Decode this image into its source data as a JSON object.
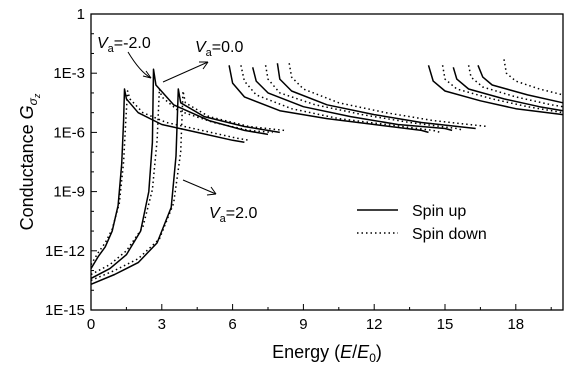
{
  "chart_data": {
    "type": "line",
    "xlabel": "Energy  (E/E0)",
    "ylabel": "Conductance  Gσz",
    "xlim": [
      0,
      20
    ],
    "ylim_log10": [
      -15,
      0
    ],
    "y_scale": "log",
    "x_ticks": [
      "0",
      "3",
      "6",
      "9",
      "12",
      "15",
      "18"
    ],
    "x_tick_values": [
      0,
      3,
      6,
      9,
      12,
      15,
      18
    ],
    "y_ticks": [
      "1E-15",
      "1E-12",
      "1E-9",
      "1E-6",
      "1E-3",
      "1"
    ],
    "y_tick_values": [
      -15,
      -12,
      -9,
      -6,
      -3,
      0
    ],
    "legend": {
      "position": "lower-right",
      "entries": [
        "Spin up",
        "Spin down"
      ]
    },
    "annotations": [
      {
        "text": "Va=-2.0",
        "points_to_x": 1.4
      },
      {
        "text": "Va=0.0",
        "points_to_x": 2.7
      },
      {
        "text": "Va=2.0",
        "points_to_x": 3.7
      }
    ],
    "series": [
      {
        "name": "Spin up",
        "style": "solid",
        "curves": [
          [
            [
              0.0,
              -12.9
            ],
            [
              0.3,
              -12.3
            ],
            [
              0.6,
              -11.8
            ],
            [
              0.9,
              -11.0
            ],
            [
              1.15,
              -9.7
            ],
            [
              1.3,
              -7.6
            ],
            [
              1.38,
              -5.4
            ],
            [
              1.42,
              -3.8
            ],
            [
              1.5,
              -4.3
            ],
            [
              2.0,
              -5.0
            ],
            [
              3.0,
              -5.6
            ],
            [
              4.5,
              -6.0
            ],
            [
              6.0,
              -6.4
            ],
            [
              6.5,
              -6.5
            ]
          ],
          [
            [
              0.0,
              -13.4
            ],
            [
              0.8,
              -12.9
            ],
            [
              1.5,
              -12.2
            ],
            [
              2.1,
              -11.0
            ],
            [
              2.45,
              -9.0
            ],
            [
              2.6,
              -6.5
            ],
            [
              2.65,
              -2.8
            ],
            [
              2.75,
              -3.6
            ],
            [
              3.5,
              -4.6
            ],
            [
              5.0,
              -5.4
            ],
            [
              6.5,
              -5.9
            ],
            [
              7.5,
              -6.1
            ]
          ],
          [
            [
              0.0,
              -13.7
            ],
            [
              1.0,
              -13.2
            ],
            [
              2.0,
              -12.6
            ],
            [
              2.8,
              -11.6
            ],
            [
              3.4,
              -9.8
            ],
            [
              3.6,
              -7.2
            ],
            [
              3.7,
              -3.8
            ],
            [
              3.8,
              -4.5
            ],
            [
              4.8,
              -5.2
            ],
            [
              6.5,
              -5.7
            ],
            [
              8.0,
              -6.0
            ]
          ],
          [
            [
              5.85,
              -2.6
            ],
            [
              6.0,
              -3.5
            ],
            [
              6.5,
              -4.2
            ],
            [
              8,
              -4.9
            ],
            [
              10,
              -5.3
            ],
            [
              12,
              -5.6
            ],
            [
              14,
              -5.9
            ],
            [
              14.3,
              -6.0
            ]
          ],
          [
            [
              6.85,
              -2.7
            ],
            [
              7.0,
              -3.4
            ],
            [
              7.5,
              -4.0
            ],
            [
              9,
              -4.7
            ],
            [
              11,
              -5.2
            ],
            [
              13,
              -5.6
            ],
            [
              15,
              -5.8
            ],
            [
              15.3,
              -5.9
            ]
          ],
          [
            [
              7.9,
              -2.5
            ],
            [
              8.0,
              -3.3
            ],
            [
              8.5,
              -3.9
            ],
            [
              10,
              -4.6
            ],
            [
              12,
              -5.1
            ],
            [
              14,
              -5.5
            ],
            [
              16.3,
              -5.8
            ]
          ],
          [
            [
              14.3,
              -2.6
            ],
            [
              14.5,
              -3.4
            ],
            [
              15,
              -3.9
            ],
            [
              16.5,
              -4.4
            ],
            [
              18,
              -4.8
            ],
            [
              20,
              -5.1
            ]
          ],
          [
            [
              15.35,
              -2.7
            ],
            [
              15.5,
              -3.3
            ],
            [
              16,
              -3.8
            ],
            [
              17.5,
              -4.3
            ],
            [
              19,
              -4.7
            ],
            [
              20,
              -4.9
            ]
          ],
          [
            [
              16.4,
              -2.6
            ],
            [
              16.6,
              -3.2
            ],
            [
              17,
              -3.6
            ],
            [
              18.5,
              -4.1
            ],
            [
              20,
              -4.5
            ]
          ]
        ]
      },
      {
        "name": "Spin down",
        "style": "dotted",
        "curves": [
          [
            [
              0.0,
              -12.7
            ],
            [
              0.3,
              -12.1
            ],
            [
              0.6,
              -11.6
            ],
            [
              0.9,
              -10.9
            ],
            [
              1.2,
              -9.6
            ],
            [
              1.38,
              -7.5
            ],
            [
              1.48,
              -5.3
            ],
            [
              1.55,
              -3.9
            ],
            [
              1.65,
              -4.3
            ],
            [
              2.2,
              -5.0
            ],
            [
              3.2,
              -5.5
            ],
            [
              4.7,
              -5.9
            ],
            [
              6.2,
              -6.3
            ],
            [
              6.7,
              -6.4
            ]
          ],
          [
            [
              0.0,
              -13.2
            ],
            [
              0.8,
              -12.7
            ],
            [
              1.5,
              -12.0
            ],
            [
              2.2,
              -10.8
            ],
            [
              2.6,
              -8.9
            ],
            [
              2.8,
              -6.4
            ],
            [
              2.9,
              -3.8
            ],
            [
              3.0,
              -4.2
            ],
            [
              3.7,
              -4.9
            ],
            [
              5.2,
              -5.5
            ],
            [
              6.7,
              -5.9
            ],
            [
              7.7,
              -6.0
            ]
          ],
          [
            [
              0.0,
              -13.5
            ],
            [
              1.0,
              -13.0
            ],
            [
              2.0,
              -12.4
            ],
            [
              2.9,
              -11.4
            ],
            [
              3.5,
              -9.6
            ],
            [
              3.8,
              -7.0
            ],
            [
              3.9,
              -3.9
            ],
            [
              4.0,
              -4.5
            ],
            [
              5.0,
              -5.2
            ],
            [
              6.7,
              -5.7
            ],
            [
              8.2,
              -5.9
            ]
          ],
          [
            [
              6.35,
              -2.6
            ],
            [
              6.5,
              -3.4
            ],
            [
              7.0,
              -4.1
            ],
            [
              8.5,
              -4.8
            ],
            [
              10.5,
              -5.3
            ],
            [
              12.5,
              -5.6
            ],
            [
              14.5,
              -5.9
            ],
            [
              14.8,
              -6.0
            ]
          ],
          [
            [
              7.4,
              -2.6
            ],
            [
              7.5,
              -3.3
            ],
            [
              8.0,
              -4.0
            ],
            [
              9.5,
              -4.6
            ],
            [
              11.5,
              -5.1
            ],
            [
              13.5,
              -5.5
            ],
            [
              15.5,
              -5.8
            ],
            [
              15.8,
              -5.9
            ]
          ],
          [
            [
              8.4,
              -2.5
            ],
            [
              8.5,
              -3.2
            ],
            [
              9.0,
              -3.8
            ],
            [
              10.5,
              -4.5
            ],
            [
              12.5,
              -5.0
            ],
            [
              14.5,
              -5.4
            ],
            [
              16.8,
              -5.7
            ]
          ],
          [
            [
              14.9,
              -2.6
            ],
            [
              15.0,
              -3.3
            ],
            [
              15.5,
              -3.8
            ],
            [
              17,
              -4.3
            ],
            [
              18.5,
              -4.7
            ],
            [
              20,
              -5.0
            ]
          ],
          [
            [
              16.0,
              -2.6
            ],
            [
              16.1,
              -3.2
            ],
            [
              16.6,
              -3.7
            ],
            [
              18,
              -4.2
            ],
            [
              19.5,
              -4.6
            ],
            [
              20,
              -4.7
            ]
          ],
          [
            [
              17.5,
              -2.3
            ],
            [
              17.6,
              -3.0
            ],
            [
              18,
              -3.4
            ],
            [
              19,
              -3.8
            ],
            [
              20,
              -4.1
            ]
          ]
        ]
      }
    ]
  }
}
